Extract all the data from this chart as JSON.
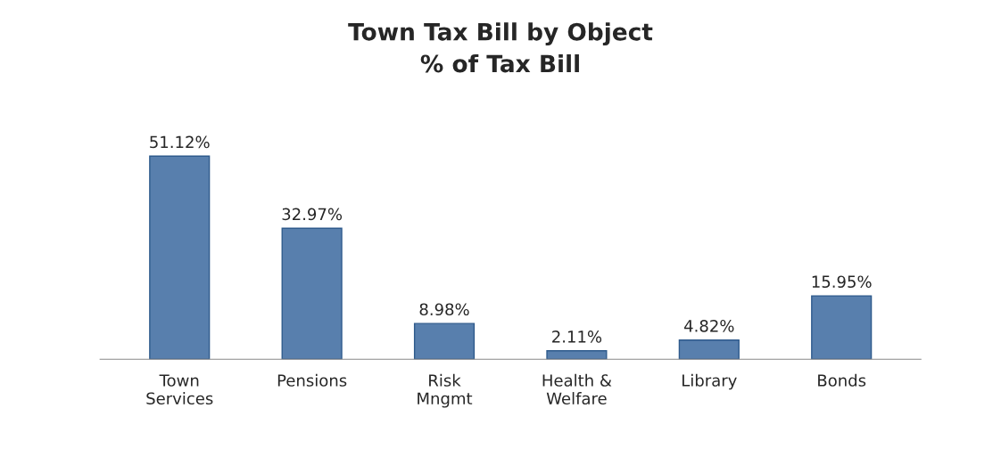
{
  "chart_data": {
    "type": "bar",
    "title": "Town Tax Bill by Object\n% of Tax Bill",
    "categories": [
      "Town\nServices",
      "Pensions",
      "Risk\nMngmt",
      "Health &\nWelfare",
      "Library",
      "Bonds"
    ],
    "values": [
      51.12,
      32.97,
      8.98,
      2.11,
      4.82,
      15.95
    ],
    "value_labels": [
      "51.12%",
      "32.97%",
      "8.98%",
      "2.11%",
      "4.82%",
      "15.95%"
    ],
    "color": "#4a7ebb",
    "grid": false,
    "legend": false
  }
}
